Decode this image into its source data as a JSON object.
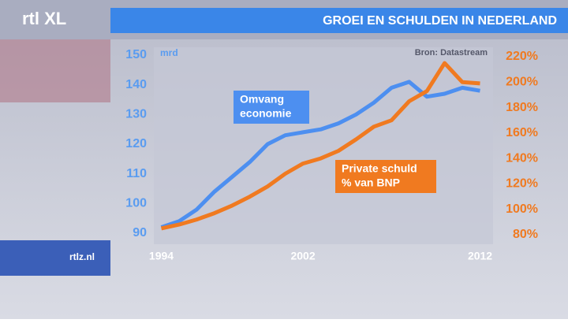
{
  "brand": "rtl XL",
  "site": "rtlz.nl",
  "chart_data": {
    "type": "line",
    "title": "GROEI EN SCHULDEN IN NEDERLAND",
    "source": "Bron: Datastream",
    "y_unit": "mrd",
    "x": [
      1994,
      1995,
      1996,
      1997,
      1998,
      1999,
      2000,
      2001,
      2002,
      2003,
      2004,
      2005,
      2006,
      2007,
      2008,
      2009,
      2010,
      2011,
      2012
    ],
    "xlim": [
      1993.8,
      2012.6
    ],
    "xticks": [
      1994,
      2002,
      2012
    ],
    "ylim": [
      90,
      150
    ],
    "yticks": [
      90,
      100,
      110,
      120,
      130,
      140,
      150
    ],
    "y2lim": [
      80,
      220
    ],
    "y2ticks": [
      {
        "value": 80,
        "label": "80%"
      },
      {
        "value": 100,
        "label": "100%"
      },
      {
        "value": 120,
        "label": "120%"
      },
      {
        "value": 140,
        "label": "140%"
      },
      {
        "value": 160,
        "label": "160%"
      },
      {
        "value": 180,
        "label": "180%"
      },
      {
        "value": 200,
        "label": "200%"
      },
      {
        "value": 220,
        "label": "220%"
      }
    ],
    "series": [
      {
        "name": [
          "Omvang",
          "economie"
        ],
        "color": "#4d8ff0",
        "values": [
          92,
          94,
          98,
          104,
          109,
          114,
          120,
          123,
          124,
          125,
          127,
          130,
          134,
          139,
          141,
          136,
          137,
          139,
          138
        ]
      },
      {
        "name": [
          "Private schuld",
          "% van BNP"
        ],
        "color": "#f07a20",
        "axis": "y2",
        "values": [
          85,
          88,
          92,
          97,
          103,
          110,
          118,
          128,
          136,
          140,
          146,
          155,
          165,
          170,
          185,
          193,
          215,
          200,
          199
        ]
      }
    ]
  }
}
